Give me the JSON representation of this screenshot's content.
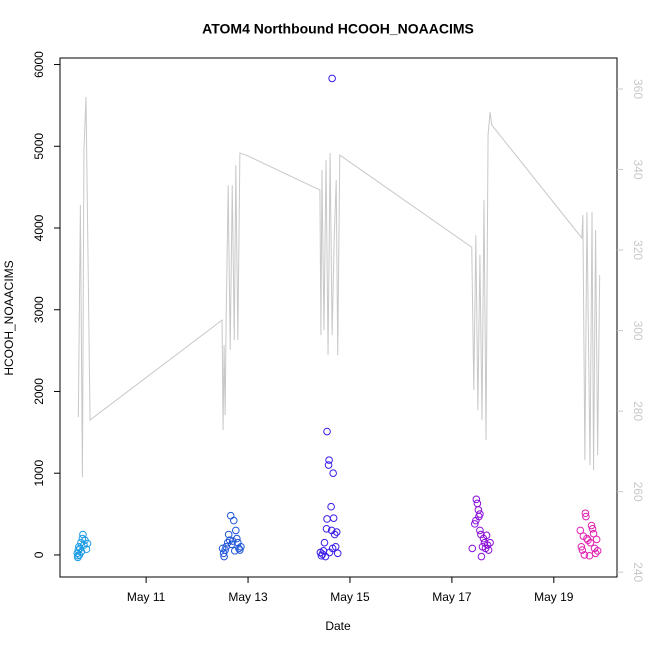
{
  "chart_data": {
    "type": "scatter",
    "title": "ATOM4 Northbound HCOOH_NOAACIMS",
    "x_label": "Date",
    "y_label": "HCOOH_NOAACIMS",
    "xlim": [
      9.31,
      20.24
    ],
    "xticks": [
      {
        "value": 11,
        "label": "May 11"
      },
      {
        "value": 13,
        "label": "May 13"
      },
      {
        "value": 15,
        "label": "May 15"
      },
      {
        "value": 17,
        "label": "May 17"
      },
      {
        "value": 19,
        "label": "May 19"
      }
    ],
    "ylim": [
      -270,
      6080
    ],
    "yticks": [
      0,
      1000,
      2000,
      3000,
      4000,
      5000,
      6000
    ],
    "y2lim": [
      238.8,
      367.7
    ],
    "y2ticks": [
      240,
      260,
      280,
      300,
      320,
      340,
      360
    ],
    "y2_tick_color": "#c8c8c8",
    "series": [
      {
        "color": "#1a9be6",
        "x": [
          9.65,
          9.66,
          9.67,
          9.68,
          9.69,
          9.7,
          9.72,
          9.73,
          9.75,
          9.76,
          9.78,
          9.8,
          9.83,
          9.85,
          9.66
        ],
        "values": [
          20,
          -30,
          60,
          100,
          0,
          80,
          150,
          40,
          200,
          250,
          120,
          180,
          70,
          140,
          -10
        ]
      },
      {
        "color": "#1f56d8",
        "x": [
          12.5,
          12.52,
          12.53,
          12.55,
          12.57,
          12.6,
          12.62,
          12.64,
          12.66,
          12.68,
          12.7,
          12.72,
          12.74,
          12.76,
          12.78,
          12.8,
          12.82,
          12.84,
          12.86
        ],
        "values": [
          80,
          20,
          -20,
          60,
          100,
          150,
          250,
          180,
          480,
          130,
          170,
          420,
          50,
          300,
          200,
          150,
          80,
          60,
          100
        ]
      },
      {
        "color": "#3a1ee8",
        "x": [
          14.42,
          14.44,
          14.46,
          14.48,
          14.5,
          14.52,
          14.54,
          14.55,
          14.55,
          14.58,
          14.59,
          14.6,
          14.65,
          14.67,
          14.63,
          14.64,
          14.66,
          14.68,
          14.7,
          14.72,
          14.74,
          14.76
        ],
        "values": [
          30,
          -10,
          10,
          50,
          150,
          -20,
          320,
          440,
          1510,
          1100,
          1160,
          30,
          5830,
          1000,
          590,
          300,
          80,
          450,
          250,
          100,
          280,
          20
        ]
      },
      {
        "color": "#8a10d8",
        "x": [
          17.4,
          17.45,
          17.47,
          17.48,
          17.5,
          17.52,
          17.53,
          17.55,
          17.57,
          17.58,
          17.6,
          17.62,
          17.64,
          17.66,
          17.68,
          17.7,
          17.72,
          17.75,
          17.55
        ],
        "values": [
          80,
          380,
          420,
          680,
          630,
          550,
          470,
          300,
          250,
          -20,
          100,
          200,
          150,
          80,
          240,
          120,
          60,
          150,
          500
        ]
      },
      {
        "color": "#e020b0",
        "x": [
          19.52,
          19.54,
          19.56,
          19.58,
          19.6,
          19.62,
          19.63,
          19.65,
          19.67,
          19.7,
          19.72,
          19.74,
          19.76,
          19.78,
          19.8,
          19.82,
          19.84,
          19.86
        ],
        "values": [
          300,
          100,
          60,
          230,
          0,
          510,
          470,
          200,
          180,
          -10,
          150,
          360,
          320,
          260,
          80,
          20,
          190,
          50
        ]
      },
      {
        "type": "line",
        "axis": "y2",
        "color": "#c8c8c8",
        "x": [
          9.67,
          9.71,
          9.75,
          9.78,
          9.82,
          9.9,
          12.49,
          12.51,
          12.53,
          12.55,
          12.57,
          12.61,
          12.65,
          12.69,
          12.73,
          12.76,
          12.8,
          12.84,
          12.96,
          14.41,
          14.43,
          14.45,
          14.49,
          14.53,
          14.57,
          14.61,
          14.65,
          14.69,
          14.73,
          14.76,
          14.8,
          17.39,
          17.43,
          17.47,
          17.51,
          17.55,
          17.59,
          17.63,
          17.67,
          17.71,
          17.75,
          17.78,
          19.55,
          19.57,
          19.61,
          19.65,
          19.71,
          19.75,
          19.78,
          19.82,
          19.86,
          19.9
        ],
        "values": [
          278.5,
          331.2,
          263.6,
          344.8,
          358,
          277.8,
          302.6,
          275.3,
          296.4,
          279,
          302.6,
          336.1,
          295.2,
          336.1,
          297.6,
          341.1,
          297.6,
          344.1,
          343.6,
          334.9,
          298.9,
          339.9,
          300.1,
          342.4,
          293.9,
          344.1,
          298.9,
          322.5,
          337.4,
          293.9,
          343.6,
          320.7,
          285.2,
          323.7,
          280.2,
          318.8,
          277.8,
          332.4,
          272.8,
          348.6,
          354.3,
          351.1,
          323,
          328.7,
          267.8,
          329.4,
          266.6,
          329.4,
          265.3,
          325,
          269.1,
          313.8
        ]
      }
    ]
  }
}
